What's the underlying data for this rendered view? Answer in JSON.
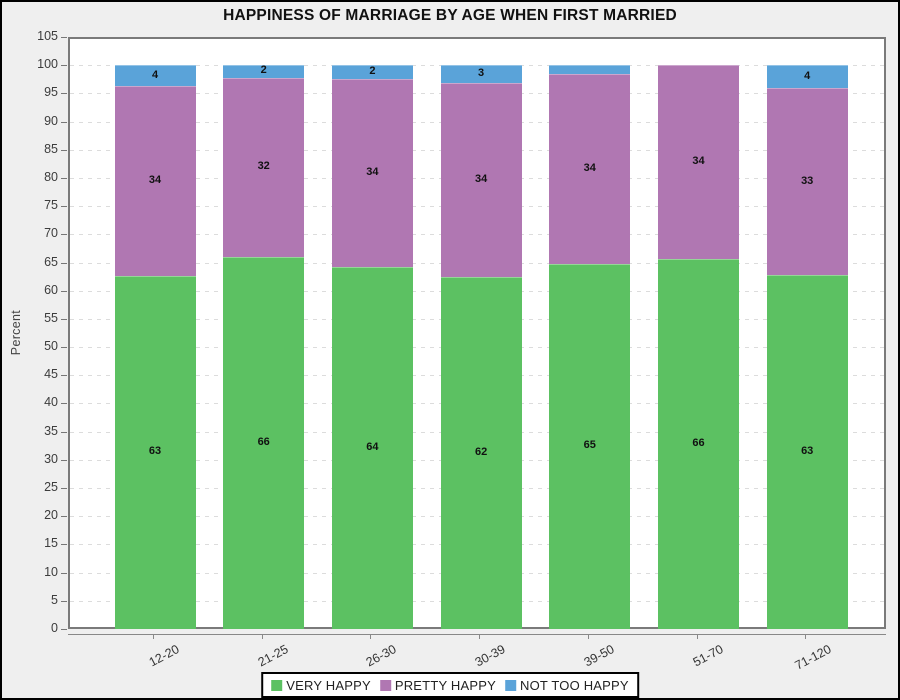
{
  "chart_data": {
    "type": "bar",
    "stacked": true,
    "title": "HAPPINESS OF MARRIAGE BY AGE WHEN FIRST MARRIED",
    "xlabel": "",
    "ylabel": "Percent",
    "categories": [
      "12-20",
      "21-25",
      "26-30",
      "30-39",
      "39-50",
      "51-70",
      "71-120"
    ],
    "series": [
      {
        "name": "VERY HAPPY",
        "color": "#5cc162",
        "values": [
          63,
          66,
          64,
          62,
          65,
          66,
          63
        ],
        "labels": [
          "63",
          "66",
          "64",
          "62",
          "65",
          "66",
          "63"
        ]
      },
      {
        "name": "PRETTY HAPPY",
        "color": "#b077b2",
        "values": [
          34,
          32,
          34,
          34,
          34,
          34,
          33
        ],
        "labels": [
          "34",
          "32",
          "34",
          "34",
          "34",
          "34",
          "33"
        ]
      },
      {
        "name": "NOT TOO HAPPY",
        "color": "#5aa3d9",
        "values": [
          4,
          2,
          2,
          3,
          1,
          0,
          4
        ],
        "labels": [
          "4",
          "2",
          "2",
          "3",
          "",
          "",
          "4"
        ]
      }
    ],
    "ylim": [
      0,
      105
    ],
    "ytick_step": 5,
    "grid": "horizontal-dashed",
    "legend_position": "bottom-center",
    "draw_hints": {
      "green_tops_pct": [
        62.7,
        66.0,
        64.2,
        62.5,
        64.8,
        65.6,
        62.8
      ],
      "blue_heights_pct": [
        3.7,
        2.2,
        2.4,
        3.2,
        1.6,
        0,
        4.1
      ],
      "bar_total_pct": 100
    },
    "colors": {
      "frame_background": "#efefef",
      "plot_background": "#ffffff",
      "plot_border": "#7a7a7a",
      "gridline": "#dcdcdc",
      "axis_line": "#888888",
      "title_text": "#111111",
      "tick_text": "#3c3c3c"
    }
  }
}
